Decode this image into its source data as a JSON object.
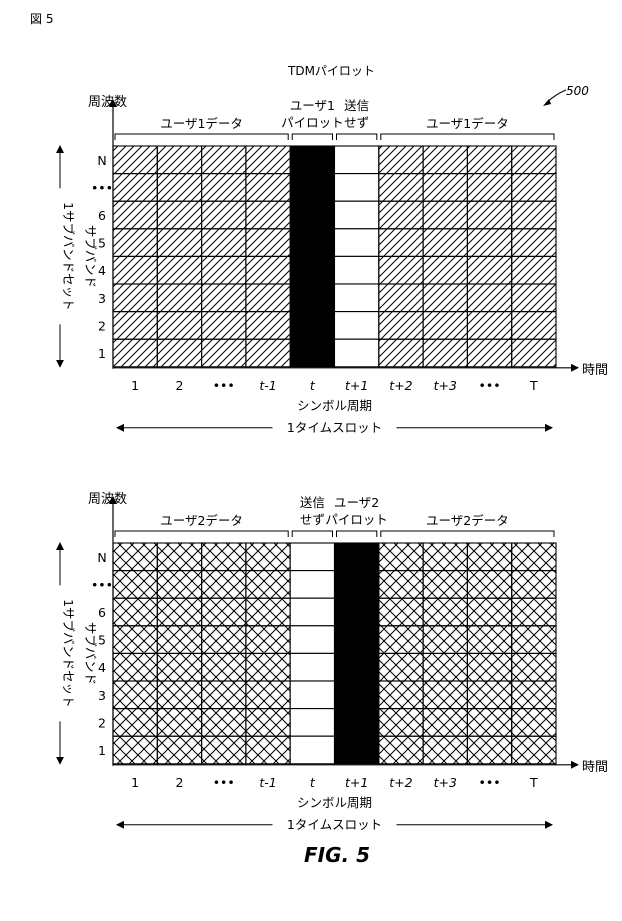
{
  "figure_label": "図 5",
  "caption": "FIG. 5",
  "reference_number": "500",
  "panels": [
    {
      "title": "TDMパイロット",
      "freq_label": "周波数",
      "vertical_label_1": "1サブバンドセット",
      "vertical_label_2": "サブバンド",
      "y_ticks": [
        "N",
        "•••",
        "6",
        "5",
        "4",
        "3",
        "2",
        "1"
      ],
      "x_ticks": [
        "1",
        "2",
        "•••",
        "t-1",
        "t",
        "t+1",
        "t+2",
        "t+3",
        "•••",
        "T"
      ],
      "time_label": "時間",
      "symbol_period_label": "シンボル周期",
      "timeslot_label": "1タイムスロット",
      "brace_left": "ユーザ1データ",
      "brace_pilot_1": "ユーザ1",
      "brace_pilot_2": "パイロット",
      "brace_nosend_1": "送信",
      "brace_nosend_2": "せず",
      "brace_right": "ユーザ1データ",
      "columns": [
        "hatch",
        "hatch",
        "hatch",
        "hatch",
        "black",
        "white",
        "hatch",
        "hatch",
        "hatch",
        "hatch"
      ]
    },
    {
      "title": "",
      "freq_label": "周波数",
      "vertical_label_1": "1サブバンドセット",
      "vertical_label_2": "サブバンド",
      "y_ticks": [
        "N",
        "•••",
        "6",
        "5",
        "4",
        "3",
        "2",
        "1"
      ],
      "x_ticks": [
        "1",
        "2",
        "•••",
        "t-1",
        "t",
        "t+1",
        "t+2",
        "t+3",
        "•••",
        "T"
      ],
      "time_label": "時間",
      "symbol_period_label": "シンボル周期",
      "timeslot_label": "1タイムスロット",
      "brace_left": "ユーザ2データ",
      "brace_nosend_1": "送信",
      "brace_nosend_2": "せず",
      "brace_pilot_1": "ユーザ2",
      "brace_pilot_2": "パイロット",
      "brace_right": "ユーザ2データ",
      "columns": [
        "cross",
        "cross",
        "cross",
        "cross",
        "white",
        "black",
        "cross",
        "cross",
        "cross",
        "cross"
      ]
    }
  ]
}
